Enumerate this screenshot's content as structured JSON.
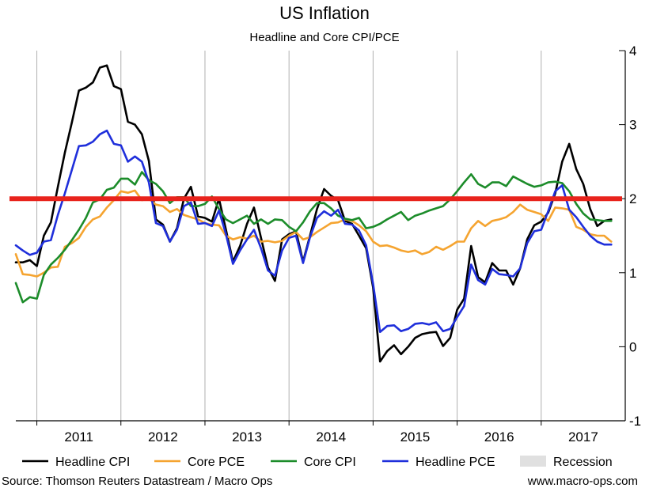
{
  "chart_data": {
    "type": "line",
    "title": "US Inflation",
    "subtitle": "Headline and Core CPI/PCE",
    "ylim": [
      -1,
      4
    ],
    "yticks": [
      -1,
      0,
      1,
      2,
      3,
      4
    ],
    "xlim": [
      2010.25,
      2017.5
    ],
    "xtick_labels": [
      {
        "label": "2011",
        "x": 2011.0
      },
      {
        "label": "2012",
        "x": 2012.0
      },
      {
        "label": "2013",
        "x": 2013.0
      },
      {
        "label": "2014",
        "x": 2014.0
      },
      {
        "label": "2015",
        "x": 2015.0
      },
      {
        "label": "2016",
        "x": 2016.0
      },
      {
        "label": "2017",
        "x": 2017.0
      }
    ],
    "year_gridlines": [
      2010.5,
      2011.5,
      2012.5,
      2013.5,
      2014.5,
      2015.5,
      2016.5
    ],
    "grid": "vertical",
    "reference_line": {
      "y": 2.0,
      "color": "#e8231c"
    },
    "legend": {
      "placement": "bottom"
    },
    "series": [
      {
        "name": "Headline CPI",
        "color": "#000000",
        "x": [
          2010.25,
          2010.333,
          2010.417,
          2010.5,
          2010.583,
          2010.667,
          2010.75,
          2010.833,
          2010.917,
          2011.0,
          2011.083,
          2011.167,
          2011.25,
          2011.333,
          2011.417,
          2011.5,
          2011.583,
          2011.667,
          2011.75,
          2011.833,
          2011.917,
          2012.0,
          2012.083,
          2012.167,
          2012.25,
          2012.333,
          2012.417,
          2012.5,
          2012.583,
          2012.667,
          2012.75,
          2012.833,
          2012.917,
          2013.0,
          2013.083,
          2013.167,
          2013.25,
          2013.333,
          2013.417,
          2013.5,
          2013.583,
          2013.667,
          2013.75,
          2013.833,
          2013.917,
          2014.0,
          2014.083,
          2014.167,
          2014.25,
          2014.333,
          2014.417,
          2014.5,
          2014.583,
          2014.667,
          2014.75,
          2014.833,
          2014.917,
          2015.0,
          2015.083,
          2015.167,
          2015.25,
          2015.333,
          2015.417,
          2015.5,
          2015.583,
          2015.667,
          2015.75,
          2015.833,
          2015.917,
          2016.0,
          2016.083,
          2016.167,
          2016.25,
          2016.333,
          2016.417,
          2016.5,
          2016.583,
          2016.667,
          2016.75,
          2016.833,
          2016.917,
          2017.0,
          2017.083,
          2017.167,
          2017.25,
          2017.333
        ],
        "values": [
          1.14,
          1.14,
          1.17,
          1.09,
          1.5,
          1.68,
          2.16,
          2.62,
          3.03,
          3.46,
          3.5,
          3.57,
          3.77,
          3.8,
          3.52,
          3.48,
          3.04,
          3.0,
          2.87,
          2.51,
          1.72,
          1.65,
          1.42,
          1.6,
          2.0,
          2.16,
          1.76,
          1.74,
          1.69,
          2.0,
          1.58,
          1.15,
          1.36,
          1.66,
          1.88,
          1.47,
          1.07,
          0.89,
          1.45,
          1.52,
          1.56,
          1.15,
          1.5,
          1.86,
          2.13,
          2.04,
          1.98,
          1.7,
          1.66,
          1.5,
          1.33,
          0.8,
          -0.2,
          -0.06,
          0.02,
          -0.1,
          0.0,
          0.12,
          0.17,
          0.19,
          0.2,
          0.01,
          0.12,
          0.5,
          0.65,
          1.36,
          0.94,
          0.87,
          1.13,
          1.03,
          1.03,
          0.84,
          1.06,
          1.45,
          1.64,
          1.69,
          1.81,
          2.07,
          2.5,
          2.74,
          2.4,
          2.2,
          1.86,
          1.63,
          1.7,
          1.72
        ]
      },
      {
        "name": "Core PCE",
        "color": "#f5a430",
        "x": [
          2010.25,
          2010.333,
          2010.417,
          2010.5,
          2010.583,
          2010.667,
          2010.75,
          2010.833,
          2010.917,
          2011.0,
          2011.083,
          2011.167,
          2011.25,
          2011.333,
          2011.417,
          2011.5,
          2011.583,
          2011.667,
          2011.75,
          2011.833,
          2011.917,
          2012.0,
          2012.083,
          2012.167,
          2012.25,
          2012.333,
          2012.417,
          2012.5,
          2012.583,
          2012.667,
          2012.75,
          2012.833,
          2012.917,
          2013.0,
          2013.083,
          2013.167,
          2013.25,
          2013.333,
          2013.417,
          2013.5,
          2013.583,
          2013.667,
          2013.75,
          2013.833,
          2013.917,
          2014.0,
          2014.083,
          2014.167,
          2014.25,
          2014.333,
          2014.417,
          2014.5,
          2014.583,
          2014.667,
          2014.75,
          2014.833,
          2014.917,
          2015.0,
          2015.083,
          2015.167,
          2015.25,
          2015.333,
          2015.417,
          2015.5,
          2015.583,
          2015.667,
          2015.75,
          2015.833,
          2015.917,
          2016.0,
          2016.083,
          2016.167,
          2016.25,
          2016.333,
          2016.417,
          2016.5,
          2016.583,
          2016.667,
          2016.75,
          2016.833,
          2016.917,
          2017.0,
          2017.083,
          2017.167,
          2017.25,
          2017.333
        ],
        "values": [
          1.25,
          0.98,
          0.97,
          0.95,
          1.0,
          1.07,
          1.08,
          1.35,
          1.4,
          1.47,
          1.62,
          1.72,
          1.76,
          1.88,
          1.98,
          2.1,
          2.08,
          2.11,
          1.98,
          2.0,
          1.92,
          1.9,
          1.82,
          1.86,
          1.78,
          1.75,
          1.72,
          1.67,
          1.65,
          1.64,
          1.5,
          1.45,
          1.48,
          1.46,
          1.5,
          1.42,
          1.43,
          1.41,
          1.43,
          1.5,
          1.55,
          1.45,
          1.48,
          1.55,
          1.61,
          1.67,
          1.68,
          1.72,
          1.7,
          1.64,
          1.56,
          1.42,
          1.36,
          1.37,
          1.34,
          1.3,
          1.28,
          1.3,
          1.25,
          1.28,
          1.35,
          1.31,
          1.36,
          1.42,
          1.42,
          1.6,
          1.7,
          1.63,
          1.7,
          1.72,
          1.75,
          1.82,
          1.92,
          1.85,
          1.82,
          1.79,
          1.7,
          1.88,
          1.87,
          1.85,
          1.62,
          1.58,
          1.52,
          1.5,
          1.5,
          1.42
        ]
      },
      {
        "name": "Core CPI",
        "color": "#1c8c2a",
        "x": [
          2010.25,
          2010.333,
          2010.417,
          2010.5,
          2010.583,
          2010.667,
          2010.75,
          2010.833,
          2010.917,
          2011.0,
          2011.083,
          2011.167,
          2011.25,
          2011.333,
          2011.417,
          2011.5,
          2011.583,
          2011.667,
          2011.75,
          2011.833,
          2011.917,
          2012.0,
          2012.083,
          2012.167,
          2012.25,
          2012.333,
          2012.417,
          2012.5,
          2012.583,
          2012.667,
          2012.75,
          2012.833,
          2012.917,
          2013.0,
          2013.083,
          2013.167,
          2013.25,
          2013.333,
          2013.417,
          2013.5,
          2013.583,
          2013.667,
          2013.75,
          2013.833,
          2013.917,
          2014.0,
          2014.083,
          2014.167,
          2014.25,
          2014.333,
          2014.417,
          2014.5,
          2014.583,
          2014.667,
          2014.75,
          2014.833,
          2014.917,
          2015.0,
          2015.083,
          2015.167,
          2015.25,
          2015.333,
          2015.417,
          2015.5,
          2015.583,
          2015.667,
          2015.75,
          2015.833,
          2015.917,
          2016.0,
          2016.083,
          2016.167,
          2016.25,
          2016.333,
          2016.417,
          2016.5,
          2016.583,
          2016.667,
          2016.75,
          2016.833,
          2016.917,
          2017.0,
          2017.083,
          2017.167,
          2017.25,
          2017.333
        ],
        "values": [
          0.86,
          0.6,
          0.67,
          0.65,
          0.97,
          1.11,
          1.2,
          1.31,
          1.44,
          1.58,
          1.74,
          1.95,
          1.99,
          2.12,
          2.15,
          2.27,
          2.27,
          2.19,
          2.36,
          2.25,
          2.2,
          2.1,
          1.94,
          2.02,
          2.02,
          1.9,
          1.9,
          1.93,
          2.03,
          1.86,
          1.72,
          1.67,
          1.72,
          1.77,
          1.66,
          1.72,
          1.66,
          1.72,
          1.71,
          1.62,
          1.56,
          1.68,
          1.83,
          1.94,
          1.94,
          1.87,
          1.77,
          1.73,
          1.71,
          1.74,
          1.6,
          1.62,
          1.66,
          1.72,
          1.77,
          1.82,
          1.71,
          1.77,
          1.8,
          1.84,
          1.87,
          1.9,
          1.99,
          2.1,
          2.22,
          2.33,
          2.2,
          2.15,
          2.22,
          2.22,
          2.17,
          2.3,
          2.25,
          2.2,
          2.16,
          2.18,
          2.22,
          2.23,
          2.21,
          2.1,
          1.93,
          1.8,
          1.72,
          1.71,
          1.7,
          1.7
        ]
      },
      {
        "name": "Headline PCE",
        "color": "#1f2fdb",
        "x": [
          2010.25,
          2010.333,
          2010.417,
          2010.5,
          2010.583,
          2010.667,
          2010.75,
          2010.833,
          2010.917,
          2011.0,
          2011.083,
          2011.167,
          2011.25,
          2011.333,
          2011.417,
          2011.5,
          2011.583,
          2011.667,
          2011.75,
          2011.833,
          2011.917,
          2012.0,
          2012.083,
          2012.167,
          2012.25,
          2012.333,
          2012.417,
          2012.5,
          2012.583,
          2012.667,
          2012.75,
          2012.833,
          2012.917,
          2013.0,
          2013.083,
          2013.167,
          2013.25,
          2013.333,
          2013.417,
          2013.5,
          2013.583,
          2013.667,
          2013.75,
          2013.833,
          2013.917,
          2014.0,
          2014.083,
          2014.167,
          2014.25,
          2014.333,
          2014.417,
          2014.5,
          2014.583,
          2014.667,
          2014.75,
          2014.833,
          2014.917,
          2015.0,
          2015.083,
          2015.167,
          2015.25,
          2015.333,
          2015.417,
          2015.5,
          2015.583,
          2015.667,
          2015.75,
          2015.833,
          2015.917,
          2016.0,
          2016.083,
          2016.167,
          2016.25,
          2016.333,
          2016.417,
          2016.5,
          2016.583,
          2016.667,
          2016.75,
          2016.833,
          2016.917,
          2017.0,
          2017.083,
          2017.167,
          2017.25,
          2017.333
        ],
        "values": [
          1.37,
          1.3,
          1.24,
          1.27,
          1.42,
          1.44,
          1.78,
          2.07,
          2.39,
          2.71,
          2.72,
          2.77,
          2.87,
          2.92,
          2.74,
          2.72,
          2.5,
          2.57,
          2.5,
          2.22,
          1.67,
          1.63,
          1.42,
          1.58,
          1.9,
          1.95,
          1.66,
          1.67,
          1.63,
          1.84,
          1.52,
          1.12,
          1.3,
          1.45,
          1.58,
          1.33,
          1.03,
          0.96,
          1.3,
          1.47,
          1.5,
          1.13,
          1.48,
          1.74,
          1.83,
          1.77,
          1.85,
          1.66,
          1.65,
          1.57,
          1.37,
          0.85,
          0.2,
          0.28,
          0.29,
          0.21,
          0.24,
          0.31,
          0.32,
          0.3,
          0.33,
          0.21,
          0.24,
          0.4,
          0.55,
          1.11,
          0.9,
          0.84,
          1.05,
          0.98,
          0.97,
          0.95,
          1.06,
          1.4,
          1.56,
          1.58,
          1.83,
          2.1,
          2.18,
          1.85,
          1.75,
          1.62,
          1.5,
          1.42,
          1.38,
          1.38
        ]
      }
    ],
    "recession": {
      "label": "Recession",
      "color": "#e0e0e0",
      "periods": []
    }
  },
  "footer": {
    "source": "Source: Thomson Reuters Datastream / Macro Ops",
    "website": "www.macro-ops.com"
  }
}
